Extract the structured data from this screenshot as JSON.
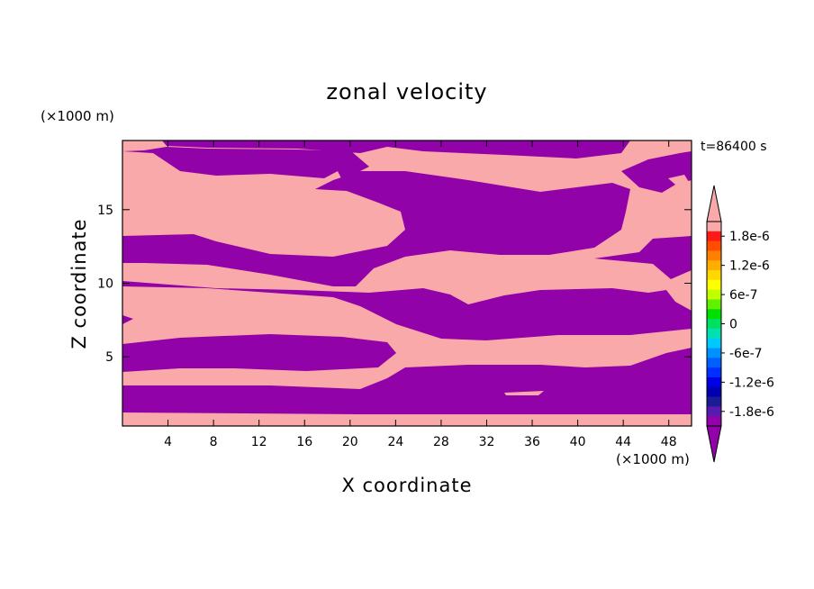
{
  "colors": {
    "positive_fill": "#f9a9a9",
    "negative_fill": "#9102a8",
    "axis": "#000000",
    "background": "#ffffff"
  },
  "chart_data": {
    "type": "heatmap",
    "title": "zonal velocity",
    "xlabel": "X coordinate",
    "ylabel": "Z coordinate",
    "x_unit": "(×1000 m)",
    "y_unit": "(×1000 m)",
    "time_label": "t=86400 s",
    "xlim": [
      0,
      50
    ],
    "ylim": [
      0.3,
      19.7
    ],
    "x_ticks": [
      4,
      8,
      12,
      16,
      20,
      24,
      28,
      32,
      36,
      40,
      44,
      48
    ],
    "y_ticks": [
      5,
      10,
      15
    ],
    "grid": false,
    "legend_placement": "right",
    "colorbar": {
      "labels": [
        "1.8e-6",
        "1.2e-6",
        "6e-7",
        "0",
        "-6e-7",
        "-1.2e-6",
        "-1.8e-6"
      ],
      "label_values": [
        1.8e-06,
        1.2e-06,
        6e-07,
        0,
        -6e-07,
        -1.2e-06,
        -1.8e-06
      ],
      "levels": [
        {
          "color": "#f9a9a9"
        },
        {
          "color": "#ff1a1a"
        },
        {
          "color": "#ff4d00"
        },
        {
          "color": "#ff8000"
        },
        {
          "color": "#ffae00"
        },
        {
          "color": "#ffd800"
        },
        {
          "color": "#ffff00"
        },
        {
          "color": "#c0ff00"
        },
        {
          "color": "#60f000"
        },
        {
          "color": "#00e000"
        },
        {
          "color": "#00e060"
        },
        {
          "color": "#00e0b0"
        },
        {
          "color": "#00c8ff"
        },
        {
          "color": "#0090ff"
        },
        {
          "color": "#0060ff"
        },
        {
          "color": "#0030ff"
        },
        {
          "color": "#0000e6"
        },
        {
          "color": "#0000b0"
        },
        {
          "color": "#1c1c96"
        },
        {
          "color": "#5a1ab0"
        },
        {
          "color": "#9102a8"
        }
      ]
    },
    "note_sign_regions": "pink = positive zonal velocity, purple = negative zonal velocity"
  }
}
